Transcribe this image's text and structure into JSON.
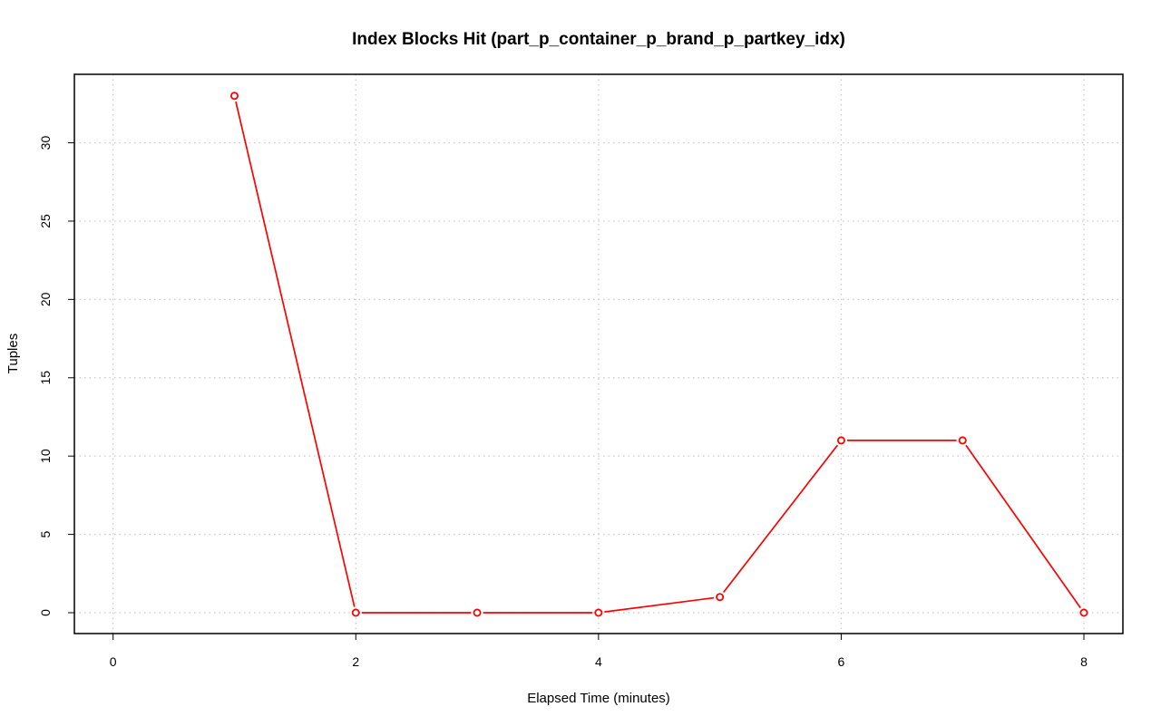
{
  "chart_data": {
    "type": "line",
    "title": "Index Blocks Hit (part_p_container_p_brand_p_partkey_idx)",
    "xlabel": "Elapsed Time (minutes)",
    "ylabel": "Tuples",
    "x_ticks": [
      0,
      2,
      4,
      6,
      8
    ],
    "y_ticks": [
      0,
      5,
      10,
      15,
      20,
      25,
      30
    ],
    "xlim": [
      0,
      8
    ],
    "ylim": [
      0,
      33
    ],
    "grid": true,
    "color": "#ff0000",
    "series": [
      {
        "x": [
          1,
          2,
          3,
          4,
          5,
          6,
          7,
          8
        ],
        "values": [
          33,
          0,
          0,
          0,
          1,
          11,
          11,
          0
        ]
      }
    ]
  }
}
